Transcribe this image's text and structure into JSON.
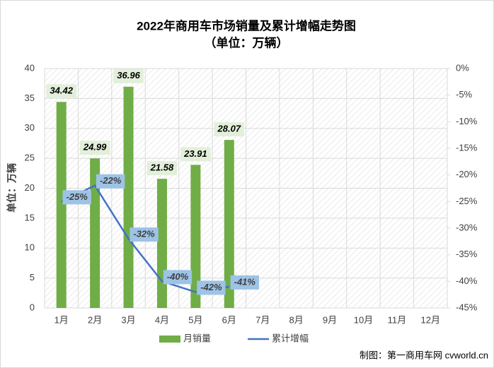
{
  "chart_data": {
    "type": "bar_line",
    "title": "2022年商用车市场销量及累计增幅走势图",
    "subtitle": "（单位：万辆）",
    "y_label": "单位：万辆",
    "source": "制图：第一商用车网 cvworld.cn",
    "categories": [
      "1月",
      "2月",
      "3月",
      "4月",
      "5月",
      "6月",
      "7月",
      "8月",
      "9月",
      "10月",
      "11月",
      "12月"
    ],
    "series": [
      {
        "name": "月销量",
        "type": "bar",
        "color": "#70ad47",
        "values": [
          34.42,
          24.99,
          36.96,
          21.58,
          23.91,
          28.07,
          null,
          null,
          null,
          null,
          null,
          null
        ]
      },
      {
        "name": "累计增幅",
        "type": "line",
        "axis": "y2",
        "color": "#4472c4",
        "values": [
          -25,
          -22,
          -32,
          -40,
          -42,
          -41,
          null,
          null,
          null,
          null,
          null,
          null
        ],
        "value_labels": [
          "-25%",
          "-22%",
          "-32%",
          "-40%",
          "-42%",
          "-41%",
          null,
          null,
          null,
          null,
          null,
          null
        ]
      }
    ],
    "ylim": [
      0,
      40
    ],
    "yticks": [
      0,
      5,
      10,
      15,
      20,
      25,
      30,
      35,
      40
    ],
    "y2lim": [
      -45,
      0
    ],
    "y2ticks": [
      {
        "value": 0,
        "label": "0%"
      },
      {
        "value": -5,
        "label": "-5%"
      },
      {
        "value": -10,
        "label": "-10%"
      },
      {
        "value": -15,
        "label": "-15%"
      },
      {
        "value": -20,
        "label": "-20%"
      },
      {
        "value": -25,
        "label": "-25%"
      },
      {
        "value": -30,
        "label": "-30%"
      },
      {
        "value": -35,
        "label": "-35%"
      },
      {
        "value": -40,
        "label": "-40%"
      },
      {
        "value": -45,
        "label": "-45%"
      }
    ],
    "grid": true,
    "legend": "bottom"
  }
}
